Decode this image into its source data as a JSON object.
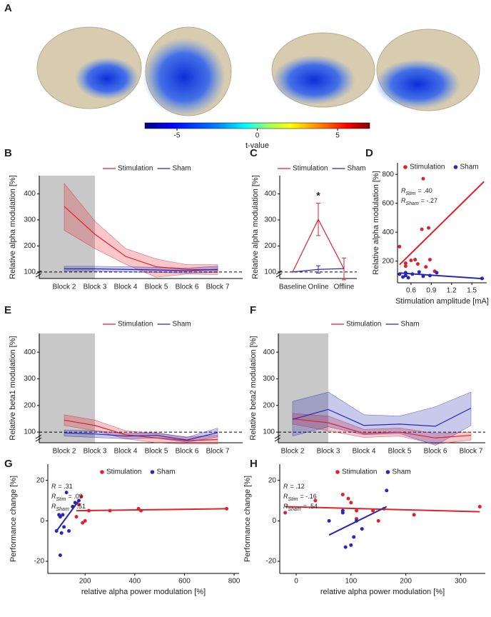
{
  "chart_data": [
    {
      "label": "A",
      "type": "colorbar",
      "title": "t-value",
      "xlim": [
        -7,
        7
      ],
      "xticks": [
        -5,
        0,
        5
      ]
    },
    {
      "label": "B",
      "type": "line",
      "ylabel": "Relative alpha modulation [%]",
      "categories": [
        "Block 2",
        "Block 3",
        "Block 4",
        "Block 5",
        "Block 6",
        "Block 7"
      ],
      "ylim": [
        75,
        470
      ],
      "yticks": [
        100,
        200,
        300,
        400
      ],
      "reference_line": 100,
      "series": [
        {
          "name": "Stimulation",
          "color": "#e0202a",
          "values": [
            352,
            245,
            160,
            120,
            110,
            108
          ],
          "lower": [
            260,
            190,
            130,
            80,
            92,
            90
          ],
          "upper": [
            440,
            295,
            190,
            150,
            128,
            128
          ]
        },
        {
          "name": "Sham",
          "color": "#2828b4",
          "values": [
            112,
            112,
            110,
            108,
            105,
            110
          ],
          "lower": [
            103,
            103,
            100,
            98,
            96,
            98
          ],
          "upper": [
            122,
            122,
            120,
            118,
            115,
            122
          ]
        }
      ]
    },
    {
      "label": "C",
      "type": "line",
      "ylabel": "Relative alpha modulation [%]",
      "categories": [
        "Baseline",
        "Online",
        "Offline"
      ],
      "ylim": [
        75,
        470
      ],
      "yticks": [
        100,
        200,
        300,
        400
      ],
      "reference_line": 100,
      "annotation": "*",
      "series": [
        {
          "name": "Stimulation",
          "color": "#e0202a",
          "values": [
            100,
            302,
            112
          ],
          "errors": [
            null,
            62,
            42
          ]
        },
        {
          "name": "Sham",
          "color": "#2828b4",
          "values": [
            100,
            110,
            113
          ],
          "errors": [
            null,
            14,
            null
          ]
        }
      ]
    },
    {
      "label": "D",
      "type": "scatter",
      "ylabel": "Relative alpha modulation [%]",
      "xlabel": "Stimulation amplitude [mA]",
      "xlim": [
        0.4,
        1.72
      ],
      "xticks": [
        0.6,
        0.9,
        1.2,
        1.5
      ],
      "ylim": [
        50,
        880
      ],
      "yticks": [
        200,
        400,
        600,
        800
      ],
      "annotations": [
        {
          "symbol": "R",
          "subscript": "Stim",
          "value": "= .40"
        },
        {
          "symbol": "R",
          "subscript": "Sham",
          "value": "= -.27"
        }
      ],
      "series": [
        {
          "name": "Stimulation",
          "color": "#e0202a",
          "x": [
            0.43,
            0.52,
            0.52,
            0.6,
            0.66,
            0.7,
            0.76,
            0.78,
            0.82,
            0.86,
            0.88,
            0.95
          ],
          "values": [
            300,
            185,
            165,
            205,
            210,
            180,
            420,
            770,
            160,
            430,
            210,
            130
          ],
          "fit": {
            "x": [
              0.43,
              1.68
            ],
            "y": [
              175,
              750
            ]
          }
        },
        {
          "name": "Sham",
          "color": "#2828b4",
          "x": [
            0.43,
            0.48,
            0.52,
            0.52,
            0.56,
            0.62,
            0.72,
            0.78,
            0.88,
            0.98,
            1.65
          ],
          "values": [
            110,
            90,
            120,
            100,
            85,
            110,
            125,
            95,
            100,
            120,
            80
          ],
          "fit": {
            "x": [
              0.43,
              1.68
            ],
            "y": [
              118,
              78
            ]
          }
        }
      ]
    },
    {
      "label": "E",
      "type": "line",
      "ylabel": "Relative beta1 modulation [%]",
      "categories": [
        "Block 2",
        "Block 3",
        "Block 4",
        "Block 5",
        "Block 6",
        "Block 7"
      ],
      "ylim": [
        60,
        470
      ],
      "yticks": [
        100,
        200,
        300,
        400
      ],
      "reference_line": 100,
      "series": [
        {
          "name": "Stimulation",
          "color": "#e0202a",
          "values": [
            145,
            125,
            90,
            78,
            68,
            72
          ],
          "lower": [
            125,
            105,
            75,
            60,
            55,
            55
          ],
          "upper": [
            165,
            145,
            105,
            95,
            82,
            88
          ]
        },
        {
          "name": "Sham",
          "color": "#2828b4",
          "values": [
            97,
            93,
            85,
            88,
            70,
            98
          ],
          "lower": [
            85,
            80,
            75,
            78,
            62,
            82
          ],
          "upper": [
            108,
            105,
            95,
            98,
            80,
            115
          ]
        }
      ]
    },
    {
      "label": "F",
      "type": "line",
      "ylabel": "Relative beta2 modulation [%]",
      "categories": [
        "Block 2",
        "Block 3",
        "Block 4",
        "Block 5",
        "Block 6",
        "Block 7"
      ],
      "ylim": [
        60,
        470
      ],
      "yticks": [
        100,
        200,
        300,
        400
      ],
      "reference_line": 100,
      "series": [
        {
          "name": "Stimulation",
          "color": "#e0202a",
          "values": [
            150,
            135,
            95,
            100,
            78,
            88
          ],
          "lower": [
            130,
            105,
            80,
            85,
            55,
            70
          ],
          "upper": [
            170,
            160,
            110,
            115,
            95,
            100
          ]
        },
        {
          "name": "Sham",
          "color": "#2828b4",
          "values": [
            148,
            185,
            125,
            130,
            122,
            190
          ],
          "lower": [
            85,
            120,
            90,
            95,
            50,
            125
          ],
          "upper": [
            215,
            250,
            165,
            160,
            195,
            250
          ]
        }
      ]
    },
    {
      "label": "G",
      "type": "scatter",
      "ylabel": "Performance change [%]",
      "xlabel": "relative alpha power modulation [%]",
      "xlim": [
        50,
        820
      ],
      "xticks": [
        200,
        400,
        600,
        800
      ],
      "ylim": [
        -26,
        28
      ],
      "yticks": [
        -20,
        0,
        20
      ],
      "annotations": [
        {
          "symbol": "R",
          "value": "= .31"
        },
        {
          "symbol": "R",
          "subscript": "Stim",
          "value": "= .09"
        },
        {
          "symbol": "R",
          "subscript": "Sham",
          "value": "= .51"
        }
      ],
      "series": [
        {
          "name": "Stimulation",
          "color": "#e0202a",
          "x": [
            165,
            175,
            185,
            190,
            200,
            215,
            300,
            415,
            425,
            770
          ],
          "values": [
            2,
            8,
            12,
            -1,
            0,
            5,
            5,
            6,
            5,
            6
          ],
          "fit": {
            "x": [
              165,
              775
            ],
            "y": [
              5,
              6
            ]
          }
        },
        {
          "name": "Sham",
          "color": "#2828b4",
          "x": [
            85,
            95,
            100,
            105,
            110,
            115,
            125,
            135,
            150,
            160,
            175,
            100
          ],
          "values": [
            -5,
            3,
            2,
            -6,
            3,
            -3,
            14,
            -5,
            7,
            9,
            10,
            -17
          ],
          "fit": {
            "x": [
              85,
              175
            ],
            "y": [
              -5,
              10
            ]
          }
        }
      ]
    },
    {
      "label": "H",
      "type": "scatter",
      "ylabel": "Performance change [%]",
      "xlabel": "relative alpha power modulation [%]",
      "xlim": [
        -30,
        345
      ],
      "xticks": [
        0,
        100,
        200,
        300
      ],
      "ylim": [
        -26,
        28
      ],
      "yticks": [
        -20,
        0,
        20
      ],
      "annotations": [
        {
          "symbol": "R",
          "value": "= .12"
        },
        {
          "symbol": "R",
          "subscript": "Stim",
          "value": "= -.16"
        },
        {
          "symbol": "R",
          "subscript": "Sham",
          "value": "= .54"
        }
      ],
      "series": [
        {
          "name": "Stimulation",
          "color": "#e0202a",
          "x": [
            -20,
            35,
            85,
            95,
            100,
            110,
            110,
            140,
            150,
            160,
            215,
            335
          ],
          "values": [
            4,
            10,
            13,
            11,
            9,
            1,
            5,
            5,
            0,
            6,
            3,
            7
          ],
          "fit": {
            "x": [
              -20,
              335
            ],
            "y": [
              7,
              4.5
            ]
          }
        },
        {
          "name": "Sham",
          "color": "#2828b4",
          "x": [
            60,
            85,
            90,
            100,
            105,
            110,
            120,
            165,
            85
          ],
          "values": [
            0,
            4,
            -13,
            -12,
            -8,
            0,
            -4,
            15,
            5
          ],
          "fit": {
            "x": [
              60,
              165
            ],
            "y": [
              -7,
              7
            ]
          }
        }
      ]
    }
  ]
}
